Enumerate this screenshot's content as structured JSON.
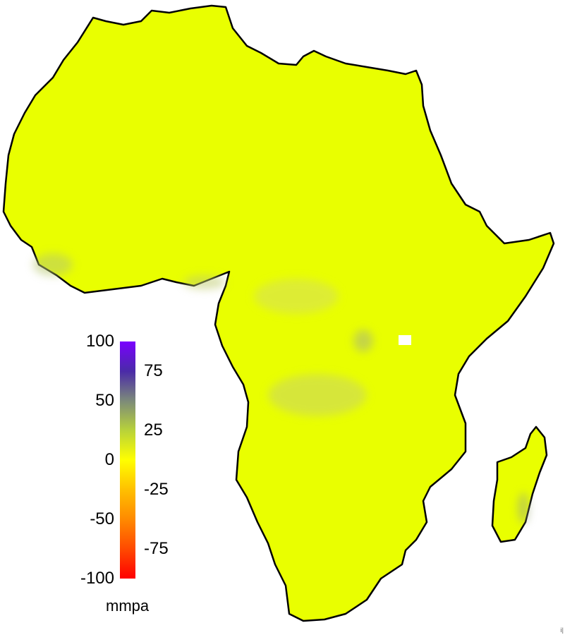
{
  "map": {
    "region": "Africa",
    "fill_color": "#e9ff00",
    "coast_color": "#000000",
    "no_data_color": "#ffffff"
  },
  "legend": {
    "units": "mmpa",
    "range": [
      -100,
      100
    ],
    "left_ticks": [
      {
        "value": 100,
        "label": "100"
      },
      {
        "value": 50,
        "label": "50"
      },
      {
        "value": 0,
        "label": "0"
      },
      {
        "value": -50,
        "label": "-50"
      },
      {
        "value": -100,
        "label": "-100"
      }
    ],
    "right_ticks": [
      {
        "value": 75,
        "label": "75"
      },
      {
        "value": 25,
        "label": "25"
      },
      {
        "value": -25,
        "label": "-25"
      },
      {
        "value": -75,
        "label": "-75"
      }
    ],
    "gradient": [
      {
        "value": 100,
        "color": "#7a00ff"
      },
      {
        "value": 75,
        "color": "#4a2aa8"
      },
      {
        "value": 50,
        "color": "#7c8a7a"
      },
      {
        "value": 25,
        "color": "#b8d23a"
      },
      {
        "value": 0,
        "color": "#ffff00"
      },
      {
        "value": -25,
        "color": "#ffc000"
      },
      {
        "value": -50,
        "color": "#ff8a00"
      },
      {
        "value": -75,
        "color": "#ff4a00"
      },
      {
        "value": -100,
        "color": "#ff0000"
      }
    ]
  },
  "credit": "i|"
}
